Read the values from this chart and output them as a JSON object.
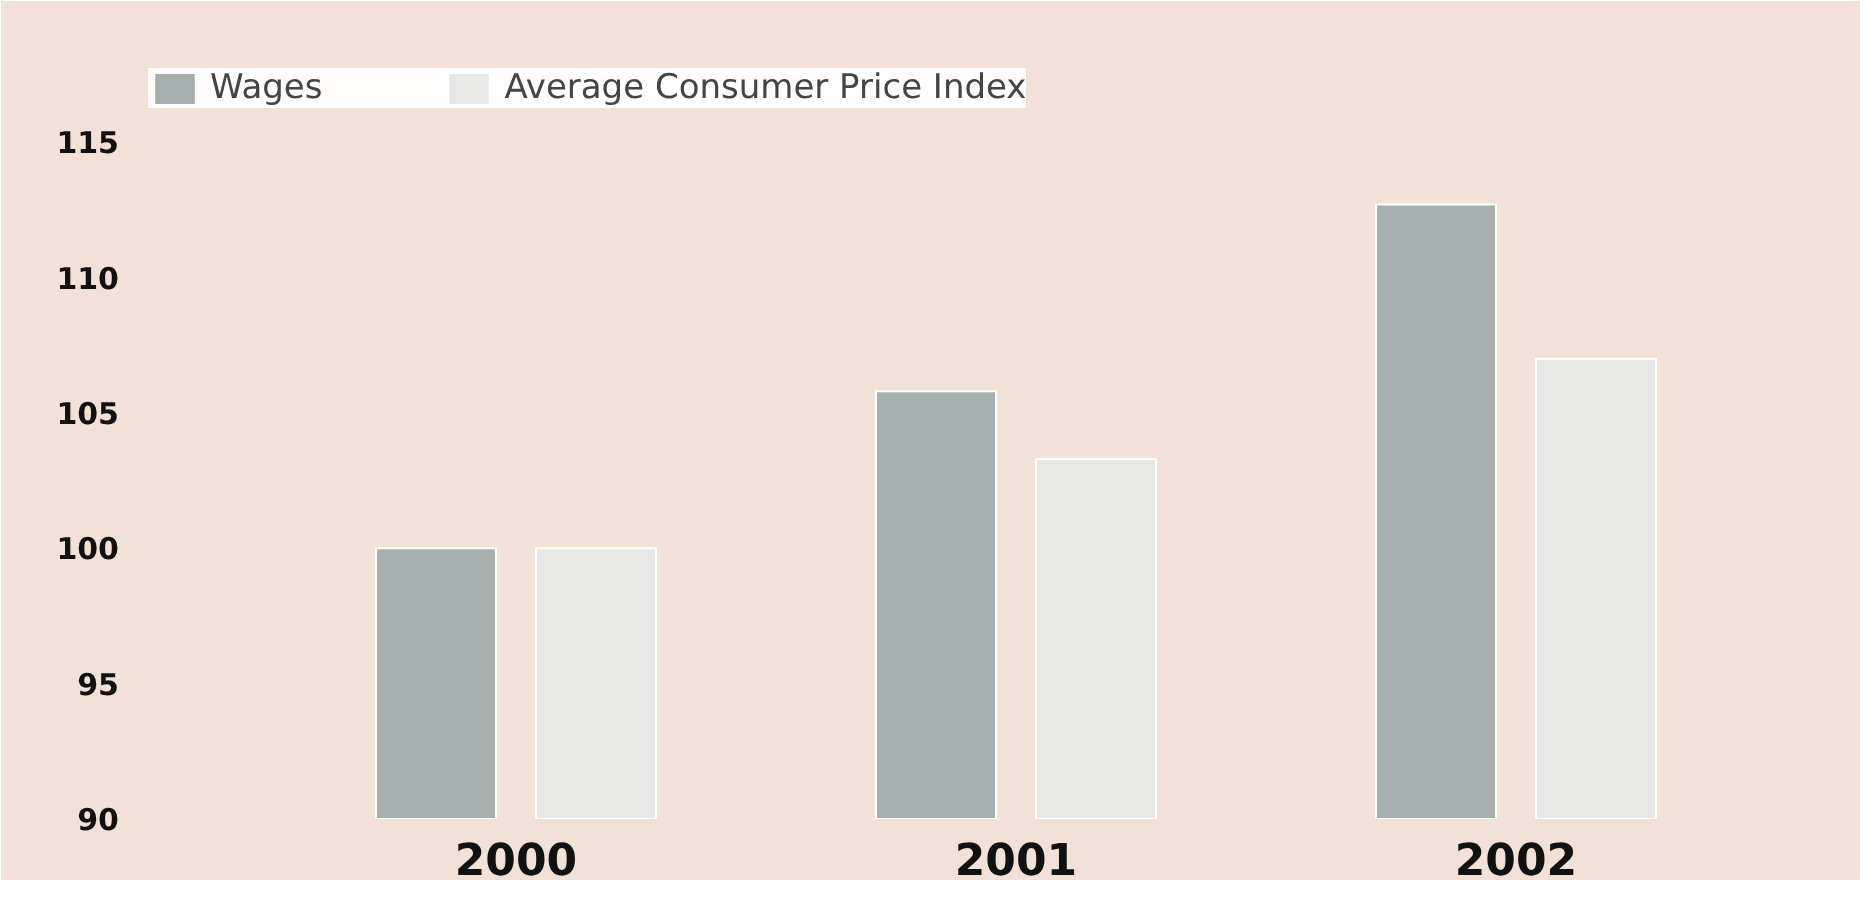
{
  "chart_data": {
    "type": "bar",
    "categories": [
      "2000",
      "2001",
      "2002"
    ],
    "series": [
      {
        "name": "Wages",
        "color": "#a6b0ae",
        "values": [
          100,
          105.8,
          112.7
        ]
      },
      {
        "name": "Average Consumer Price Index",
        "color": "#e8e9e7",
        "values": [
          100,
          103.3,
          107.0
        ]
      }
    ],
    "ylim": [
      90,
      118
    ],
    "yticks": [
      90,
      95,
      100,
      105,
      110,
      115
    ],
    "grid": false,
    "legend": "top left"
  }
}
